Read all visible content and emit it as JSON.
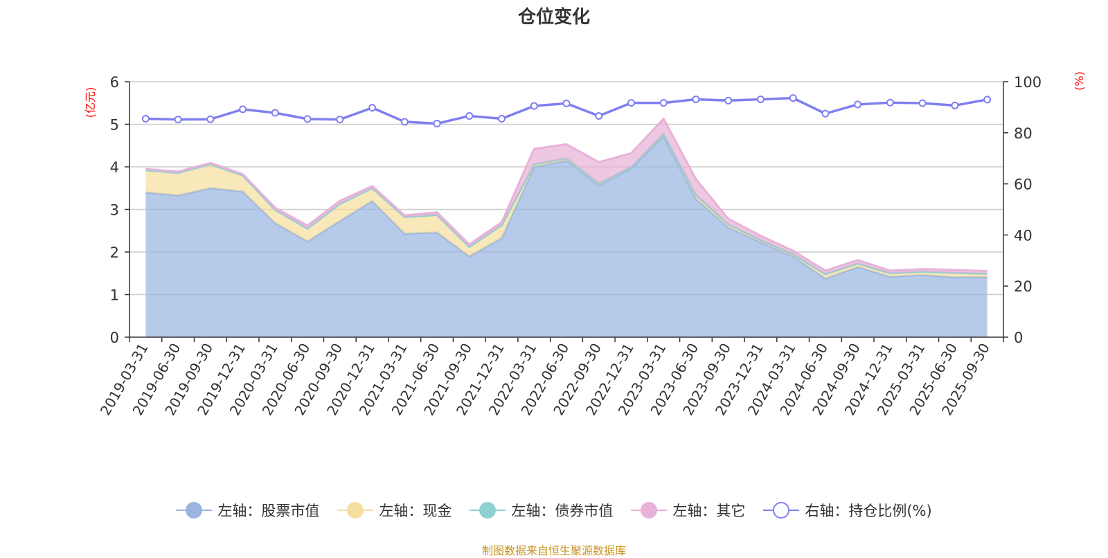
{
  "colors": {
    "stock": "#9ab5e0",
    "cash": "#f5dfa0",
    "bond": "#8fd0d0",
    "other": "#e8b2d8",
    "ratio": "#7f7ff0",
    "axis_label": "#ff0000",
    "source": "#c8941e"
  },
  "source_note": "制图数据来自恒生聚源数据库",
  "chart_data": {
    "type": "area",
    "title": "仓位变化",
    "y_left_label": "(亿元)",
    "y_right_label": "(%)",
    "y_left_range": [
      0,
      6
    ],
    "y_left_ticks": [
      "0",
      "1",
      "2",
      "3",
      "4",
      "5",
      "6"
    ],
    "y_right_range": [
      0,
      100
    ],
    "y_right_ticks": [
      "0",
      "20",
      "40",
      "60",
      "80",
      "100"
    ],
    "grid": true,
    "legend_position": "bottom",
    "categories": [
      "2019-03-31",
      "2019-06-30",
      "2019-09-30",
      "2019-12-31",
      "2020-03-31",
      "2020-06-30",
      "2020-09-30",
      "2020-12-31",
      "2021-03-31",
      "2021-06-30",
      "2021-09-30",
      "2021-12-31",
      "2022-03-31",
      "2022-06-30",
      "2022-09-30",
      "2022-12-31",
      "2023-03-31",
      "2023-06-30",
      "2023-09-30",
      "2023-12-31",
      "2024-03-31",
      "2024-06-30",
      "2024-09-30",
      "2024-12-31",
      "2025-03-31",
      "2025-06-30",
      "2025-09-30"
    ],
    "series": [
      {
        "name": "左轴：股票市值",
        "key": "stock",
        "axis": "left",
        "stacked": true,
        "values": [
          3.4,
          3.33,
          3.5,
          3.42,
          2.68,
          2.25,
          2.73,
          3.2,
          2.43,
          2.46,
          1.9,
          2.33,
          4.0,
          4.15,
          3.57,
          3.96,
          4.72,
          3.25,
          2.58,
          2.23,
          1.9,
          1.38,
          1.65,
          1.42,
          1.46,
          1.41,
          1.41
        ]
      },
      {
        "name": "左轴：现金",
        "key": "cash",
        "axis": "left",
        "stacked": true,
        "values": [
          0.52,
          0.53,
          0.56,
          0.38,
          0.31,
          0.3,
          0.4,
          0.3,
          0.39,
          0.41,
          0.22,
          0.3,
          0.06,
          0.05,
          0.04,
          0.03,
          0.05,
          0.09,
          0.07,
          0.05,
          0.05,
          0.1,
          0.08,
          0.08,
          0.08,
          0.1,
          0.08
        ]
      },
      {
        "name": "左轴：债券市值",
        "key": "bond",
        "axis": "left",
        "stacked": true,
        "values": [
          0,
          0,
          0,
          0,
          0,
          0,
          0,
          0,
          0,
          0,
          0,
          0,
          0,
          0,
          0,
          0,
          0,
          0,
          0,
          0,
          0,
          0,
          0,
          0,
          0,
          0,
          0
        ]
      },
      {
        "name": "左轴：其它",
        "key": "other",
        "axis": "left",
        "stacked": true,
        "values": [
          0.03,
          0.03,
          0.03,
          0.03,
          0.05,
          0.07,
          0.07,
          0.05,
          0.04,
          0.06,
          0.06,
          0.07,
          0.36,
          0.33,
          0.5,
          0.33,
          0.36,
          0.37,
          0.13,
          0.1,
          0.08,
          0.08,
          0.08,
          0.06,
          0.06,
          0.07,
          0.06
        ]
      },
      {
        "name": "右轴：持仓比例(%)",
        "key": "ratio",
        "axis": "right",
        "type": "line",
        "values": [
          85.5,
          85.2,
          85.3,
          89.2,
          87.8,
          85.4,
          85.2,
          89.8,
          84.3,
          83.6,
          86.6,
          85.5,
          90.5,
          91.5,
          86.6,
          91.7,
          91.7,
          93.1,
          92.6,
          93.1,
          93.6,
          87.5,
          91.1,
          91.8,
          91.6,
          90.7,
          93.0
        ]
      }
    ]
  }
}
